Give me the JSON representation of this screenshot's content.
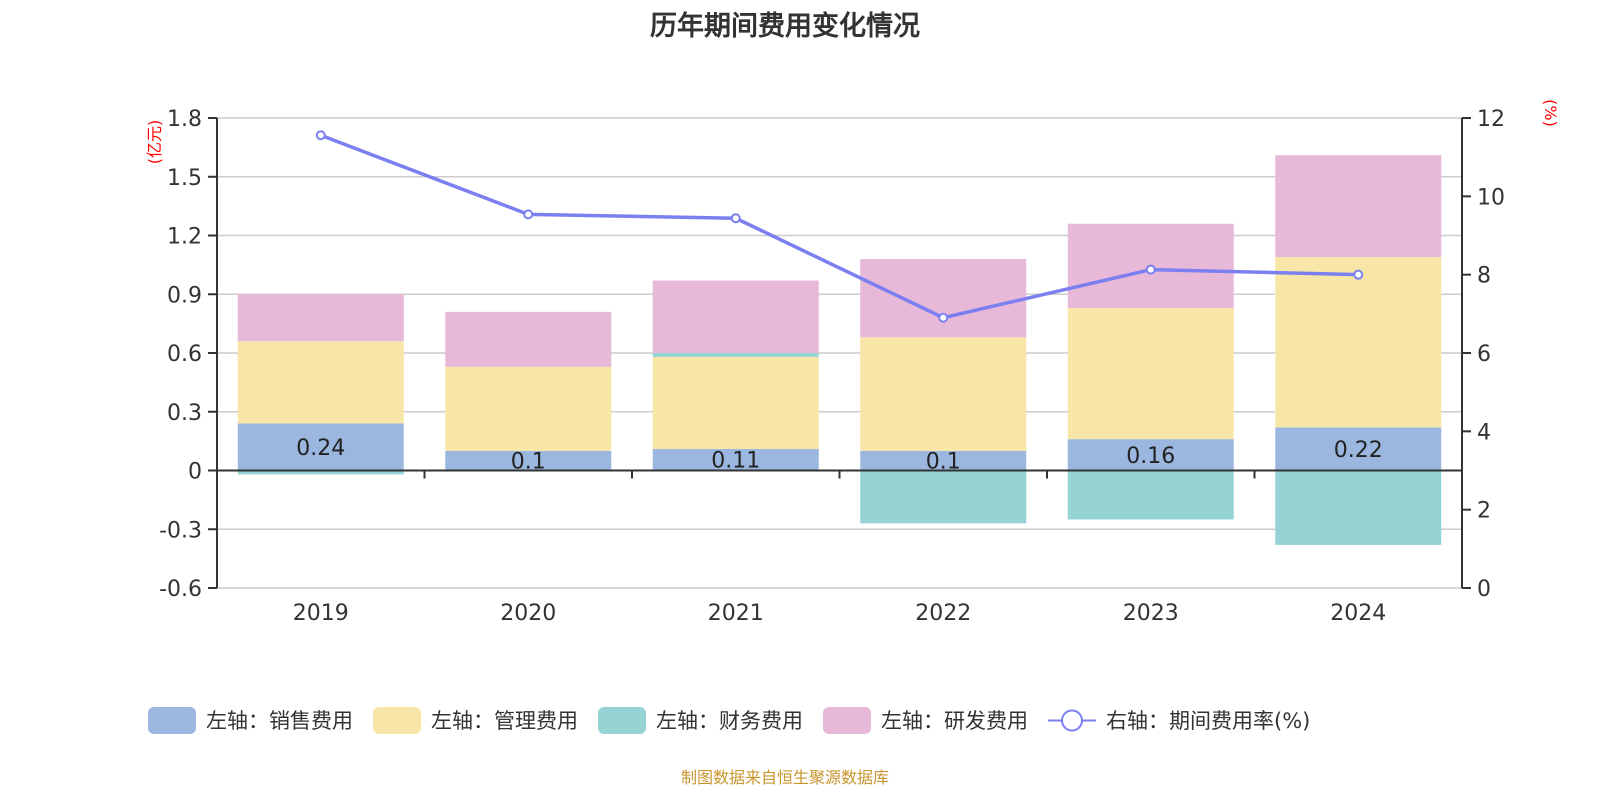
{
  "chart_data": {
    "type": "bar",
    "title": "历年期间费用变化情况",
    "categories": [
      "2019",
      "2020",
      "2021",
      "2022",
      "2023",
      "2024"
    ],
    "left_axis": {
      "unit_label": "(亿元)",
      "ylim": [
        -0.6,
        1.8
      ],
      "ticks": [
        "-0.6",
        "-0.3",
        "0",
        "0.3",
        "0.6",
        "0.9",
        "1.2",
        "1.5",
        "1.8"
      ],
      "tick_values": [
        -0.6,
        -0.3,
        0,
        0.3,
        0.6,
        0.9,
        1.2,
        1.5,
        1.8
      ]
    },
    "right_axis": {
      "unit_label": "(%)",
      "ylim": [
        0,
        12
      ],
      "ticks": [
        "0",
        "2",
        "4",
        "6",
        "8",
        "10",
        "12"
      ],
      "tick_values": [
        0,
        2,
        4,
        6,
        8,
        10,
        12
      ]
    },
    "series": [
      {
        "name": "左轴：销售费用",
        "type": "bar",
        "axis": "left",
        "color": "#9bb7e0",
        "values": [
          0.24,
          0.1,
          0.11,
          0.1,
          0.16,
          0.22
        ],
        "labels": [
          "0.24",
          "0.1",
          "0.11",
          "0.1",
          "0.16",
          "0.22"
        ]
      },
      {
        "name": "左轴：管理费用",
        "type": "bar",
        "axis": "left",
        "color": "#f8e6a8",
        "values": [
          0.42,
          0.43,
          0.47,
          0.58,
          0.67,
          0.87
        ]
      },
      {
        "name": "左轴：财务费用",
        "type": "bar",
        "axis": "left",
        "color": "#96d3d4",
        "values": [
          -0.02,
          0.0,
          0.02,
          -0.27,
          -0.25,
          -0.38
        ]
      },
      {
        "name": "左轴：研发费用",
        "type": "bar",
        "axis": "left",
        "color": "#e7b8d8",
        "values": [
          0.24,
          0.28,
          0.37,
          0.4,
          0.43,
          0.52
        ]
      },
      {
        "name": "右轴：期间费用率(%)",
        "type": "line",
        "axis": "right",
        "color": "#7b7ff0",
        "values": [
          11.56,
          9.54,
          9.44,
          6.9,
          8.13,
          8.0
        ]
      }
    ],
    "grid": true,
    "legend_position": "bottom"
  },
  "source": {
    "text": "制图数据来自恒生聚源数据库",
    "color": "#c8962e"
  },
  "colors": {
    "axis_label": "#ff0000",
    "grid": "#cccccc",
    "axis": "#333333"
  }
}
